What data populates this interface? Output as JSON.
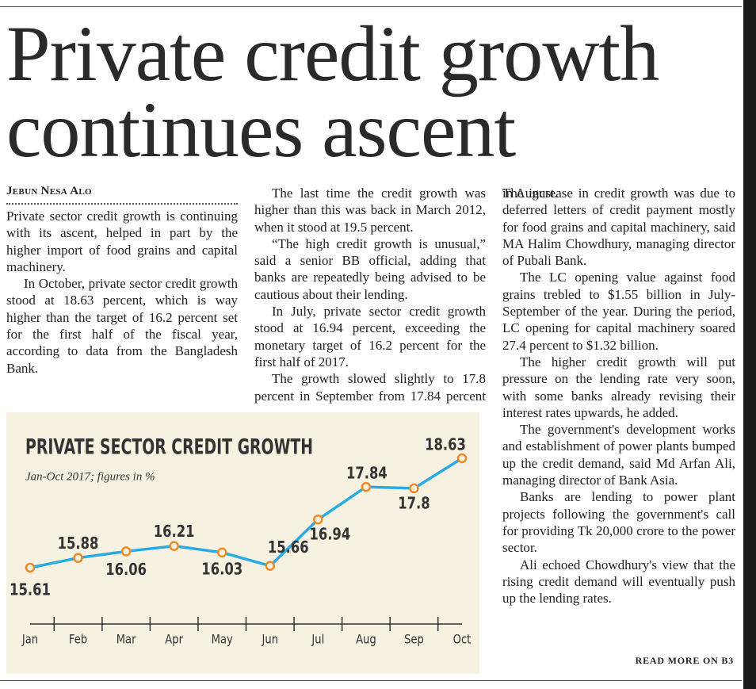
{
  "headline": "Private credit growth continues ascent",
  "byline": "Jebun Nesa Alo",
  "body_left": [
    "Private sector credit growth is continuing with its ascent, helped in part by the higher import of food grains and capital machinery.",
    "In October, private sector credit growth stood at 18.63 percent, which is way higher than the target of 16.2 percent set for the first half of the fiscal year, according to data from the Bangladesh Bank.",
    "The last time the credit growth was higher than this was back in March 2012, when it stood at 19.5 percent.",
    "“The high credit growth is unusual,” said a senior BB official, adding that banks are repeatedly being advised to be cautious about their lending.",
    "In July, private sector credit growth stood at 16.94 percent, exceeding the monetary target of 16.2 percent for the first half of 2017.",
    "The growth slowed slightly to 17.8 percent in September from 17.84 percent in August."
  ],
  "body_right": [
    "The increase in credit growth was due to deferred letters of credit payment mostly for food grains and capital machinery, said MA Halim Chowdhury, managing director of Pubali Bank.",
    "The LC opening value against food grains trebled to $1.55 billion in July-September of the year. During the period, LC opening for capital machinery soared 27.4 percent to $1.32 billion.",
    "The higher credit growth will put pressure on the lending rate very soon, with some banks already revising their interest rates upwards, he added.",
    "The government's development works and establishment of power plants bumped up the credit demand, said Md Arfan Ali, managing director of Bank Asia.",
    "Banks are lending to power plant projects following the government's call for providing Tk 20,000 crore to the power sector.",
    "Ali echoed Chowdhury's view that the rising credit demand will eventually push up the lending rates."
  ],
  "read_more": "READ MORE ON B3",
  "chart_data": {
    "type": "line",
    "title": "PRIVATE SECTOR CREDIT GROWTH",
    "subtitle": "Jan-Oct 2017; figures in %",
    "categories": [
      "Jan",
      "Feb",
      "Mar",
      "Apr",
      "May",
      "Jun",
      "Jul",
      "Aug",
      "Sep",
      "Oct"
    ],
    "values": [
      15.61,
      15.88,
      16.06,
      16.21,
      16.03,
      15.66,
      16.94,
      17.84,
      17.8,
      18.63
    ],
    "color": "#29abe2",
    "marker_color": "#f08a24"
  }
}
